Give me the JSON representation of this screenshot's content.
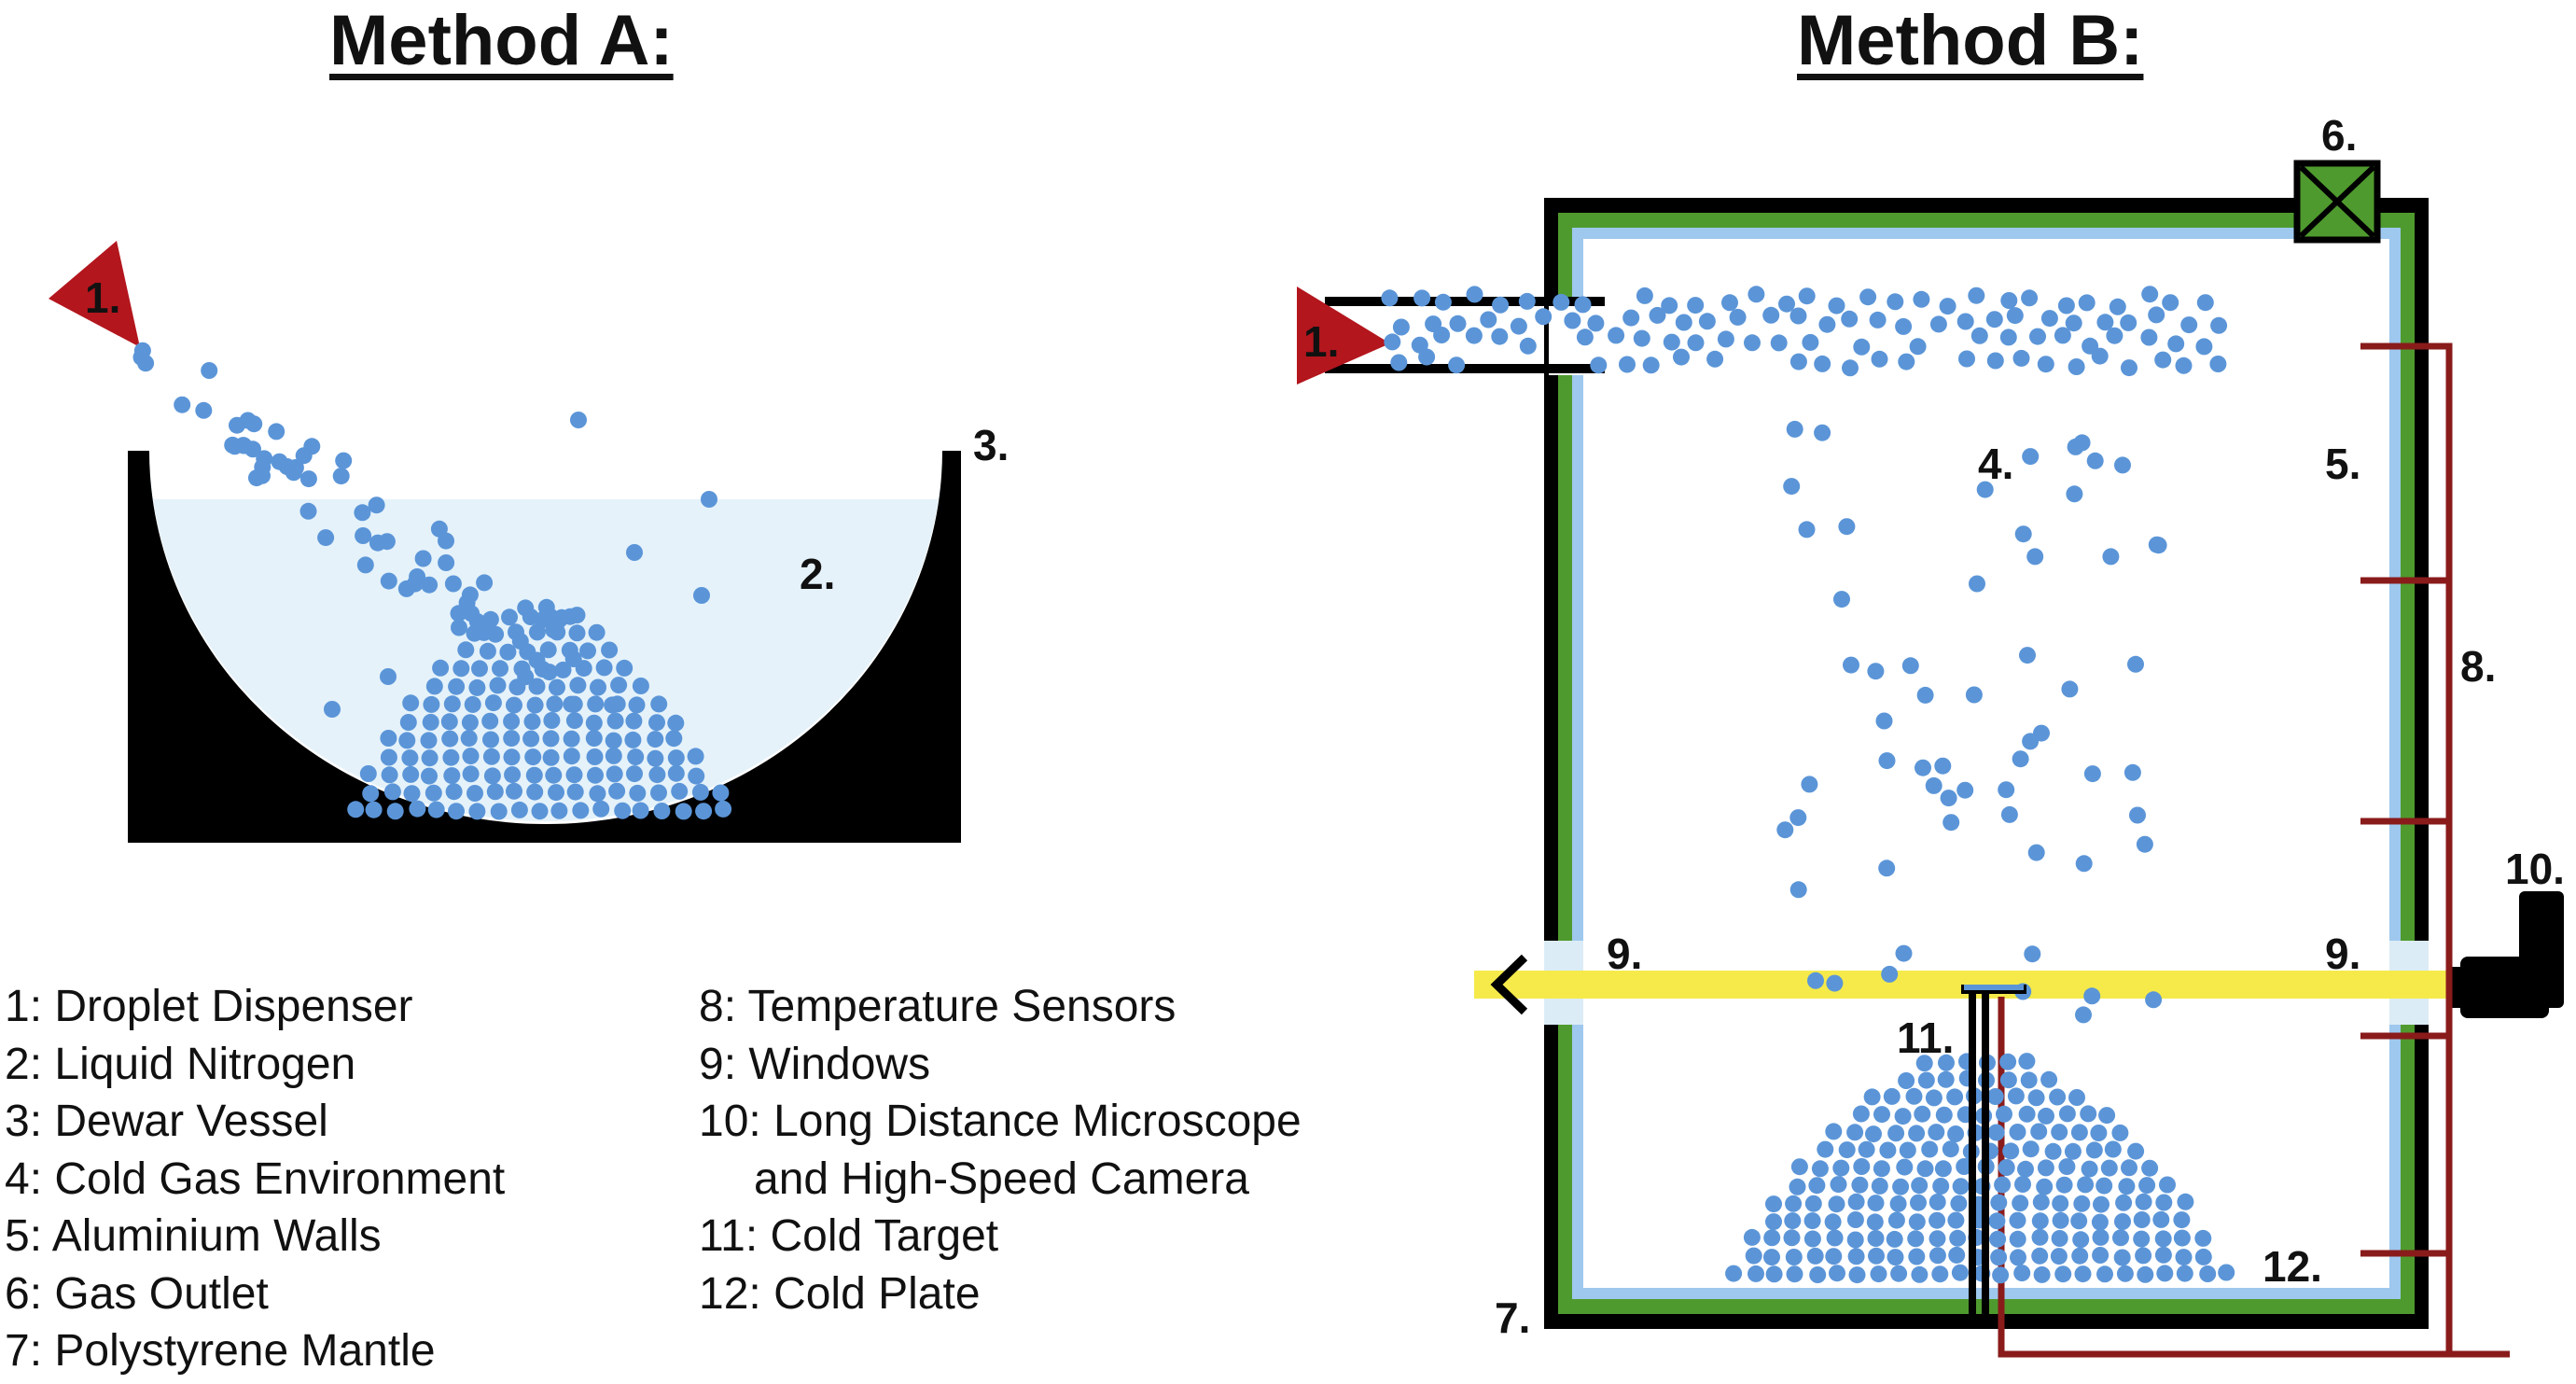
{
  "titles": {
    "method_a": "Method A:",
    "method_b": "Method B:"
  },
  "callouts": {
    "a1": "1.",
    "a2": "2.",
    "a3": "3.",
    "b1": "1.",
    "b4": "4.",
    "b5": "5.",
    "b6": "6.",
    "b7": "7.",
    "b8": "8.",
    "b9_left": "9.",
    "b9_right": "9.",
    "b10": "10.",
    "b11": "11.",
    "b12": "12."
  },
  "legend": {
    "col1": [
      "1: Droplet Dispenser",
      "2: Liquid Nitrogen",
      "3: Dewar Vessel",
      "4: Cold Gas Environment",
      "5: Aluminium Walls",
      "6: Gas Outlet",
      "7: Polystyrene Mantle"
    ],
    "col2": [
      "8: Temperature Sensors",
      "9: Windows",
      "10: Long Distance Microscope",
      "and High-Speed Camera",
      "11: Cold Target",
      "12: Cold Plate"
    ]
  },
  "colors": {
    "droplet": "#5b95d8",
    "dispenser": "#b3161d",
    "nitrogen": "#e5f2fa",
    "aluminium": "#9ec8ee",
    "mantle": "#4f9a2e",
    "sensor": "#8a1b1b",
    "beam": "#f5ea4a",
    "window": "#dcecf6",
    "outlet": "#4f9a2e"
  }
}
